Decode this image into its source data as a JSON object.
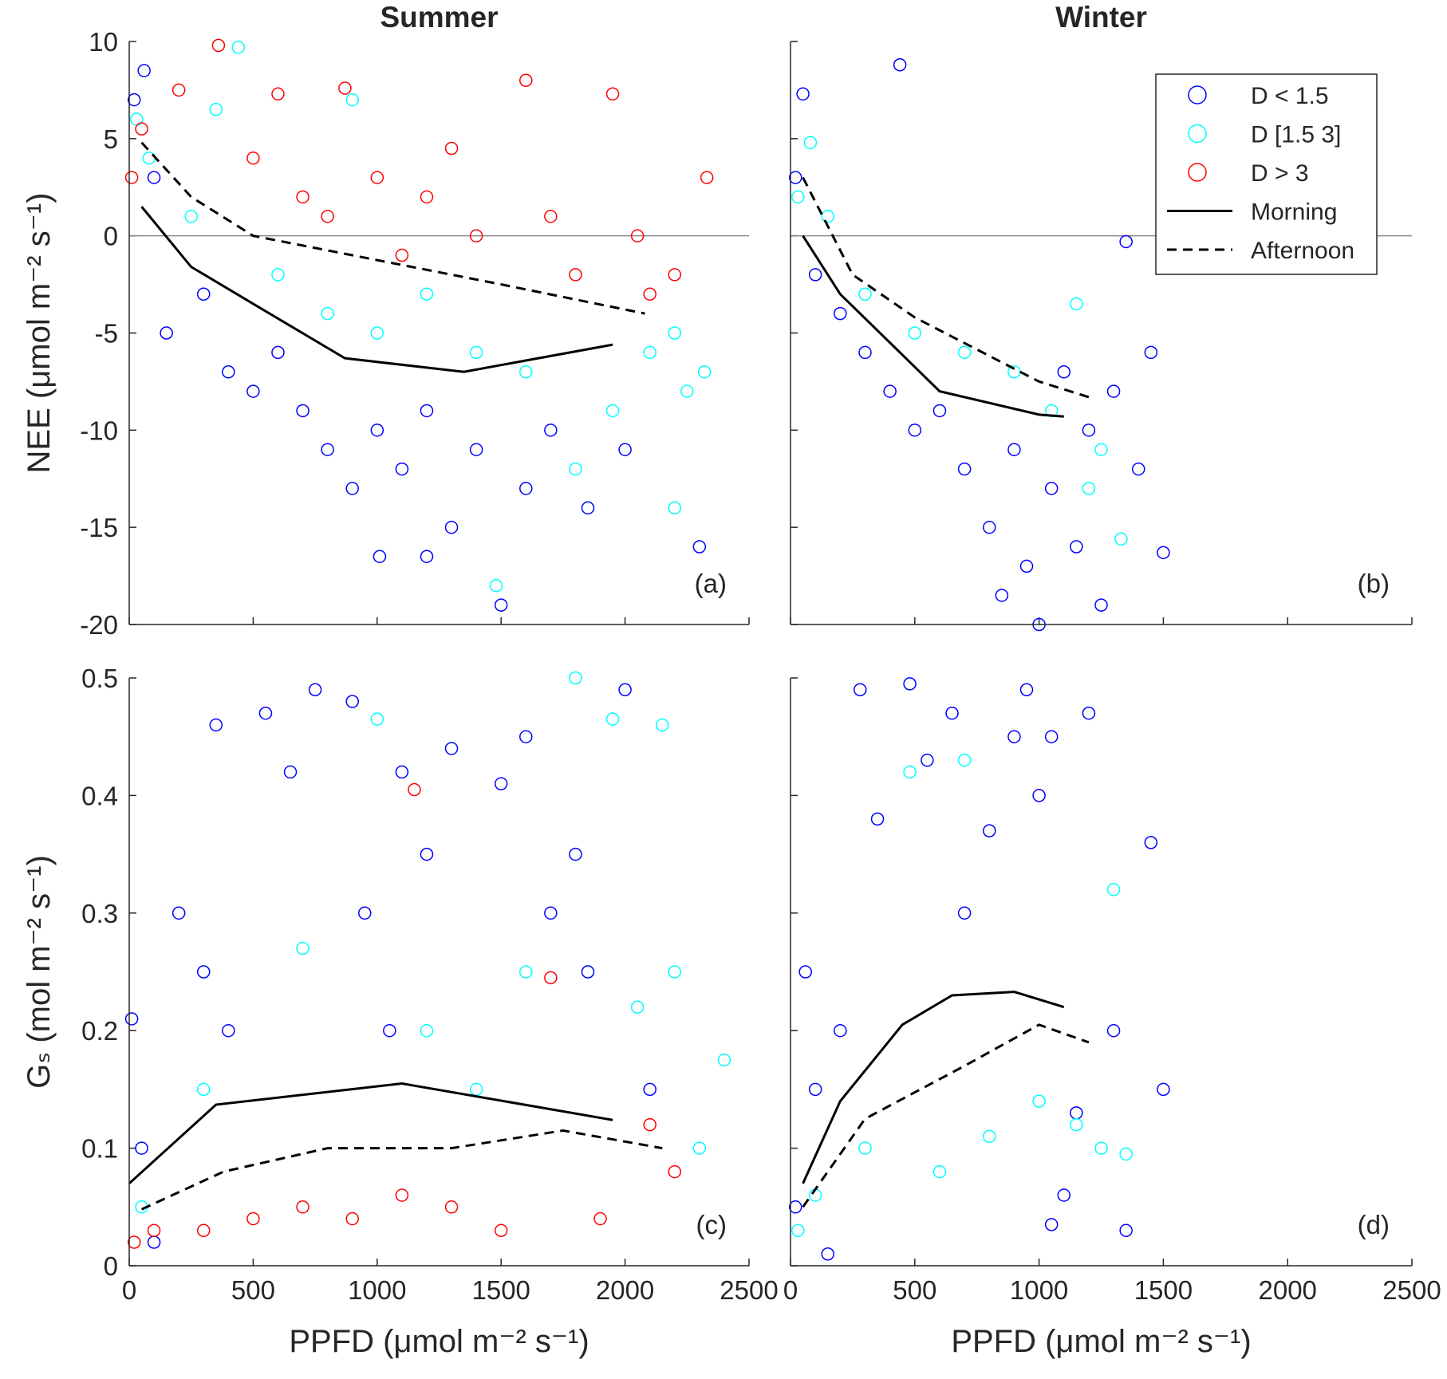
{
  "chart_data": [
    {
      "type": "scatter",
      "title": "Summer",
      "ylabel": "NEE (μmol m⁻² s⁻¹)",
      "annotation": "(a)",
      "xlim": [
        0,
        2500
      ],
      "ylim": [
        -20,
        10
      ],
      "xticks": [
        0,
        500,
        1000,
        1500,
        2000,
        2500
      ],
      "yticks": [
        -20,
        -15,
        -10,
        -5,
        0,
        5,
        10
      ],
      "show_xticklabels": false,
      "show_yticklabels": true,
      "hline": 0,
      "series": [
        {
          "color": "#0000ff",
          "marker": "circle",
          "x": [
            20,
            60,
            100,
            150,
            300,
            400,
            500,
            600,
            700,
            800,
            900,
            1000,
            1100,
            1200,
            1300,
            1400,
            1500,
            1600,
            1700,
            1850,
            2000,
            2300,
            1200,
            1010
          ],
          "values": [
            7,
            8.5,
            3,
            -5,
            -3,
            -7,
            -8,
            -6,
            -9,
            -11,
            -13,
            -10,
            -12,
            -9,
            -15,
            -11,
            -19,
            -13,
            -10,
            -14,
            -11,
            -16,
            -16.5,
            -16.5
          ]
        },
        {
          "color": "#00ffff",
          "marker": "circle",
          "x": [
            30,
            80,
            250,
            350,
            440,
            600,
            800,
            900,
            1000,
            1200,
            1400,
            1480,
            1600,
            1800,
            1950,
            2100,
            2200,
            2250,
            2320,
            2200
          ],
          "values": [
            6,
            4,
            1,
            6.5,
            9.7,
            -2,
            -4,
            7,
            -5,
            -3,
            -6,
            -18,
            -7,
            -12,
            -9,
            -6,
            -5,
            -8,
            -7,
            -14
          ]
        },
        {
          "color": "#ff0000",
          "marker": "circle",
          "x": [
            10,
            50,
            200,
            360,
            500,
            600,
            700,
            800,
            870,
            1000,
            1100,
            1200,
            1300,
            1400,
            1600,
            1700,
            1800,
            1950,
            2050,
            2100,
            2200,
            2330
          ],
          "values": [
            3,
            5.5,
            7.5,
            9.8,
            4,
            7.3,
            2,
            1,
            7.6,
            3,
            -1,
            2,
            4.5,
            0,
            8,
            1,
            -2,
            7.3,
            0,
            -3,
            -2,
            3
          ]
        },
        {
          "color": "#000000",
          "linestyle": "solid",
          "x": [
            50,
            250,
            500,
            870,
            1350,
            1950
          ],
          "values": [
            1.5,
            -1.6,
            -3.5,
            -6.3,
            -7,
            -5.6
          ]
        },
        {
          "color": "#000000",
          "linestyle": "dashed",
          "x": [
            50,
            250,
            500,
            900,
            1500,
            2080
          ],
          "values": [
            4.8,
            2,
            0,
            -1,
            -2.5,
            -4
          ]
        }
      ]
    },
    {
      "type": "scatter",
      "title": "Winter",
      "annotation": "(b)",
      "legend": "upper right",
      "xlim": [
        0,
        2500
      ],
      "ylim": [
        -20,
        10
      ],
      "xticks": [
        0,
        500,
        1000,
        1500,
        2000,
        2500
      ],
      "yticks": [
        -20,
        -15,
        -10,
        -5,
        0,
        5,
        10
      ],
      "show_xticklabels": false,
      "show_yticklabels": false,
      "hline": 0,
      "series": [
        {
          "name": "D < 1.5",
          "color": "#0000ff",
          "marker": "circle",
          "x": [
            20,
            50,
            100,
            200,
            300,
            400,
            440,
            500,
            600,
            700,
            800,
            850,
            900,
            950,
            1000,
            1050,
            1100,
            1150,
            1200,
            1250,
            1300,
            1400,
            1450,
            1500,
            1350
          ],
          "values": [
            3,
            7.3,
            -2,
            -4,
            -6,
            -8,
            8.8,
            -10,
            -9,
            -12,
            -15,
            -18.5,
            -11,
            -17,
            -20,
            -13,
            -7,
            -16,
            -10,
            -19,
            -8,
            -12,
            -6,
            -16.3,
            -0.3
          ]
        },
        {
          "name": "D [1.5 3]",
          "color": "#00ffff",
          "marker": "circle",
          "x": [
            30,
            80,
            150,
            300,
            500,
            700,
            900,
            1050,
            1150,
            1250,
            1330,
            1200
          ],
          "values": [
            2,
            4.8,
            1,
            -3,
            -5,
            -6,
            -7,
            -9,
            -3.5,
            -11,
            -15.6,
            -13
          ]
        },
        {
          "name": "D > 3",
          "color": "#ff0000",
          "marker": "circle",
          "x": [],
          "values": []
        },
        {
          "name": "Morning",
          "color": "#000000",
          "linestyle": "solid",
          "x": [
            50,
            200,
            600,
            1000,
            1100
          ],
          "values": [
            0,
            -3,
            -8,
            -9.2,
            -9.3
          ]
        },
        {
          "name": "Afternoon",
          "color": "#000000",
          "linestyle": "dashed",
          "x": [
            50,
            250,
            500,
            1000,
            1200
          ],
          "values": [
            3,
            -2,
            -4.2,
            -7.5,
            -8.3
          ]
        }
      ]
    },
    {
      "type": "scatter",
      "ylabel": "Gₛ (mol m⁻² s⁻¹)",
      "xlabel": "PPFD (μmol m⁻² s⁻¹)",
      "annotation": "(c)",
      "xlim": [
        0,
        2500
      ],
      "ylim": [
        0,
        0.5
      ],
      "xticks": [
        0,
        500,
        1000,
        1500,
        2000,
        2500
      ],
      "yticks": [
        0,
        0.1,
        0.2,
        0.3,
        0.4,
        0.5
      ],
      "show_xticklabels": true,
      "show_yticklabels": true,
      "series": [
        {
          "color": "#0000ff",
          "marker": "circle",
          "x": [
            10,
            50,
            100,
            200,
            300,
            350,
            400,
            550,
            650,
            750,
            900,
            950,
            1050,
            1100,
            1200,
            1300,
            1500,
            1600,
            1700,
            1850,
            2000,
            2100,
            1800
          ],
          "values": [
            0.21,
            0.1,
            0.02,
            0.3,
            0.25,
            0.46,
            0.2,
            0.47,
            0.42,
            0.49,
            0.48,
            0.3,
            0.2,
            0.42,
            0.35,
            0.44,
            0.41,
            0.45,
            0.3,
            0.25,
            0.49,
            0.15,
            0.35
          ]
        },
        {
          "color": "#00ffff",
          "marker": "circle",
          "x": [
            50,
            300,
            700,
            1000,
            1200,
            1400,
            1600,
            1800,
            1950,
            2050,
            2150,
            2200,
            2400,
            2300
          ],
          "values": [
            0.05,
            0.15,
            0.27,
            0.465,
            0.2,
            0.15,
            0.25,
            0.5,
            0.465,
            0.22,
            0.46,
            0.25,
            0.175,
            0.1
          ]
        },
        {
          "color": "#ff0000",
          "marker": "circle",
          "x": [
            20,
            100,
            300,
            500,
            700,
            900,
            1100,
            1150,
            1300,
            1500,
            1700,
            1900,
            2100,
            2200
          ],
          "values": [
            0.02,
            0.03,
            0.03,
            0.04,
            0.05,
            0.04,
            0.06,
            0.405,
            0.05,
            0.03,
            0.245,
            0.04,
            0.12,
            0.08
          ]
        },
        {
          "color": "#000000",
          "linestyle": "solid",
          "x": [
            0,
            350,
            1100,
            1950
          ],
          "values": [
            0.07,
            0.137,
            0.155,
            0.124
          ]
        },
        {
          "color": "#000000",
          "linestyle": "dashed",
          "x": [
            50,
            380,
            800,
            1300,
            1750,
            2150
          ],
          "values": [
            0.048,
            0.08,
            0.1,
            0.1,
            0.115,
            0.1
          ]
        }
      ]
    },
    {
      "type": "scatter",
      "xlabel": "PPFD (μmol m⁻² s⁻¹)",
      "annotation": "(d)",
      "xlim": [
        0,
        2500
      ],
      "ylim": [
        0,
        0.5
      ],
      "xticks": [
        0,
        500,
        1000,
        1500,
        2000,
        2500
      ],
      "yticks": [
        0,
        0.1,
        0.2,
        0.3,
        0.4,
        0.5
      ],
      "show_xticklabels": true,
      "show_yticklabels": false,
      "series": [
        {
          "color": "#0000ff",
          "marker": "circle",
          "x": [
            20,
            60,
            100,
            150,
            200,
            280,
            350,
            480,
            550,
            650,
            700,
            800,
            900,
            950,
            1000,
            1050,
            1100,
            1150,
            1200,
            1300,
            1350,
            1450,
            1500,
            1050
          ],
          "values": [
            0.05,
            0.25,
            0.15,
            0.01,
            0.2,
            0.49,
            0.38,
            0.495,
            0.43,
            0.47,
            0.3,
            0.37,
            0.45,
            0.49,
            0.4,
            0.45,
            0.06,
            0.13,
            0.47,
            0.2,
            0.03,
            0.36,
            0.15,
            0.035
          ]
        },
        {
          "color": "#00ffff",
          "marker": "circle",
          "x": [
            30,
            100,
            300,
            480,
            600,
            700,
            800,
            1000,
            1150,
            1300,
            1250,
            1350
          ],
          "values": [
            0.03,
            0.06,
            0.1,
            0.42,
            0.08,
            0.43,
            0.11,
            0.14,
            0.12,
            0.32,
            0.1,
            0.095
          ]
        },
        {
          "color": "#ff0000",
          "marker": "circle",
          "x": [],
          "values": []
        },
        {
          "color": "#000000",
          "linestyle": "solid",
          "x": [
            50,
            200,
            450,
            650,
            900,
            1100
          ],
          "values": [
            0.07,
            0.14,
            0.205,
            0.23,
            0.233,
            0.22
          ]
        },
        {
          "color": "#000000",
          "linestyle": "dashed",
          "x": [
            50,
            300,
            700,
            1000,
            1200
          ],
          "values": [
            0.05,
            0.125,
            0.17,
            0.205,
            0.19
          ]
        }
      ]
    }
  ]
}
